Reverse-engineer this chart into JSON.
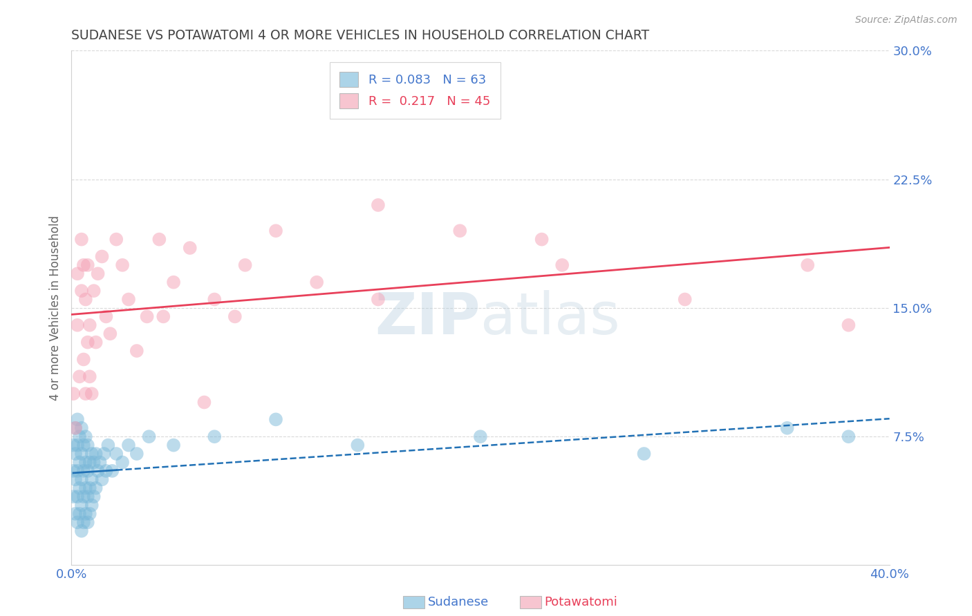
{
  "title": "SUDANESE VS POTAWATOMI 4 OR MORE VEHICLES IN HOUSEHOLD CORRELATION CHART",
  "source": "Source: ZipAtlas.com",
  "ylabel": "4 or more Vehicles in Household",
  "xlim": [
    0.0,
    0.4
  ],
  "ylim": [
    0.0,
    0.3
  ],
  "xticks": [
    0.0,
    0.4
  ],
  "xticklabels": [
    "0.0%",
    "40.0%"
  ],
  "yticks": [
    0.075,
    0.15,
    0.225,
    0.3
  ],
  "yticklabels": [
    "7.5%",
    "15.0%",
    "22.5%",
    "30.0%"
  ],
  "sudanese_R": 0.083,
  "sudanese_N": 63,
  "potawatomi_R": 0.217,
  "potawatomi_N": 45,
  "blue_color": "#7ab8d9",
  "blue_line_color": "#2171b5",
  "pink_color": "#f4a0b5",
  "pink_line_color": "#e8405a",
  "legend_blue_color": "#acd4e8",
  "legend_pink_color": "#f7c5d0",
  "watermark_zip": "ZIP",
  "watermark_atlas": "atlas",
  "background_color": "#ffffff",
  "grid_color": "#d0d0d0",
  "title_color": "#444444",
  "axis_label_color": "#666666",
  "tick_color": "#4477cc",
  "sudanese_x": [
    0.001,
    0.001,
    0.001,
    0.002,
    0.002,
    0.002,
    0.002,
    0.003,
    0.003,
    0.003,
    0.003,
    0.003,
    0.004,
    0.004,
    0.004,
    0.004,
    0.005,
    0.005,
    0.005,
    0.005,
    0.005,
    0.006,
    0.006,
    0.006,
    0.006,
    0.007,
    0.007,
    0.007,
    0.007,
    0.008,
    0.008,
    0.008,
    0.008,
    0.009,
    0.009,
    0.009,
    0.01,
    0.01,
    0.01,
    0.011,
    0.011,
    0.012,
    0.012,
    0.013,
    0.014,
    0.015,
    0.016,
    0.017,
    0.018,
    0.02,
    0.022,
    0.025,
    0.028,
    0.032,
    0.038,
    0.05,
    0.07,
    0.1,
    0.14,
    0.2,
    0.28,
    0.35,
    0.38
  ],
  "sudanese_y": [
    0.04,
    0.055,
    0.07,
    0.03,
    0.05,
    0.065,
    0.08,
    0.025,
    0.04,
    0.055,
    0.07,
    0.085,
    0.03,
    0.045,
    0.06,
    0.075,
    0.02,
    0.035,
    0.05,
    0.065,
    0.08,
    0.025,
    0.04,
    0.055,
    0.07,
    0.03,
    0.045,
    0.06,
    0.075,
    0.025,
    0.04,
    0.055,
    0.07,
    0.03,
    0.045,
    0.06,
    0.035,
    0.05,
    0.065,
    0.04,
    0.06,
    0.045,
    0.065,
    0.055,
    0.06,
    0.05,
    0.065,
    0.055,
    0.07,
    0.055,
    0.065,
    0.06,
    0.07,
    0.065,
    0.075,
    0.07,
    0.075,
    0.085,
    0.07,
    0.075,
    0.065,
    0.08,
    0.075
  ],
  "potawatomi_x": [
    0.001,
    0.002,
    0.003,
    0.003,
    0.004,
    0.005,
    0.005,
    0.006,
    0.006,
    0.007,
    0.007,
    0.008,
    0.008,
    0.009,
    0.009,
    0.01,
    0.011,
    0.012,
    0.013,
    0.015,
    0.017,
    0.019,
    0.022,
    0.025,
    0.028,
    0.032,
    0.037,
    0.043,
    0.05,
    0.058,
    0.07,
    0.085,
    0.1,
    0.12,
    0.15,
    0.19,
    0.24,
    0.3,
    0.36,
    0.38,
    0.15,
    0.23,
    0.08,
    0.065,
    0.045
  ],
  "potawatomi_y": [
    0.1,
    0.08,
    0.14,
    0.17,
    0.11,
    0.16,
    0.19,
    0.12,
    0.175,
    0.1,
    0.155,
    0.13,
    0.175,
    0.11,
    0.14,
    0.1,
    0.16,
    0.13,
    0.17,
    0.18,
    0.145,
    0.135,
    0.19,
    0.175,
    0.155,
    0.125,
    0.145,
    0.19,
    0.165,
    0.185,
    0.155,
    0.175,
    0.195,
    0.165,
    0.155,
    0.195,
    0.175,
    0.155,
    0.175,
    0.14,
    0.21,
    0.19,
    0.145,
    0.095,
    0.145
  ]
}
